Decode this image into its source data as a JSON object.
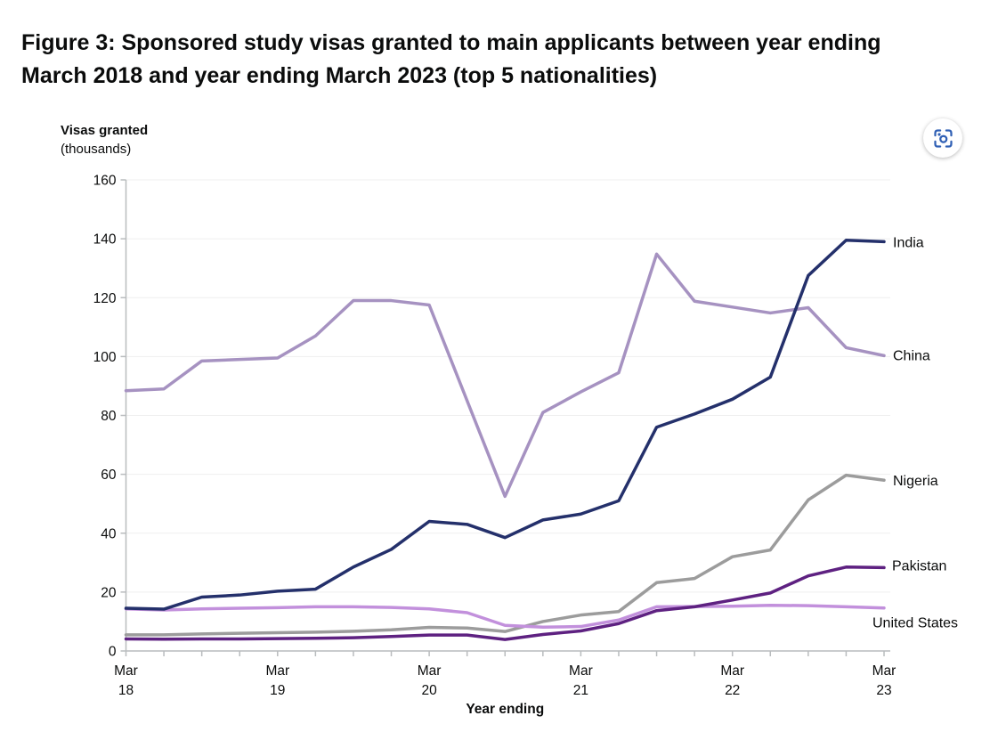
{
  "title_lines": [
    "Figure 3: Sponsored study visas granted to main applicants between year ending",
    "March 2018 and year ending March 2023 (top 5 nationalities)"
  ],
  "y_axis": {
    "title": "Visas granted",
    "subtitle": "(thousands)"
  },
  "x_axis": {
    "title": "Year ending"
  },
  "toolbar": {
    "camera_button": {
      "icon": "screenshot-camera-icon",
      "color": "#3060b5"
    }
  },
  "chart_data": {
    "type": "line",
    "title": "Figure 3: Sponsored study visas granted to main applicants between year ending March 2018 and year ending March 2023 (top 5 nationalities)",
    "xlabel": "Year ending",
    "ylabel": "Visas granted (thousands)",
    "ylim": [
      0,
      160
    ],
    "y_ticks": [
      0,
      20,
      40,
      60,
      80,
      100,
      120,
      140,
      160
    ],
    "grid": true,
    "legend_position": "end-of-line-labels",
    "x": [
      "Mar 18",
      "Jun 18",
      "Sep 18",
      "Dec 18",
      "Mar 19",
      "Jun 19",
      "Sep 19",
      "Dec 19",
      "Mar 20",
      "Jun 20",
      "Sep 20",
      "Dec 20",
      "Mar 21",
      "Jun 21",
      "Sep 21",
      "Dec 21",
      "Mar 22",
      "Jun 22",
      "Sep 22",
      "Dec 22",
      "Mar 23"
    ],
    "x_major_labels": [
      [
        "Mar",
        "18"
      ],
      [
        "Mar",
        "19"
      ],
      [
        "Mar",
        "20"
      ],
      [
        "Mar",
        "21"
      ],
      [
        "Mar",
        "22"
      ],
      [
        "Mar",
        "23"
      ]
    ],
    "series": [
      {
        "name": "India",
        "color": "#24306b",
        "values": [
          14.5,
          14.2,
          18.3,
          19,
          20.3,
          21,
          28.5,
          34.5,
          44,
          43,
          38.5,
          44.5,
          46.5,
          51,
          76,
          80.5,
          85.5,
          93,
          127.5,
          139.5,
          139
        ]
      },
      {
        "name": "China",
        "color": "#a692c1",
        "values": [
          88.4,
          89,
          98.5,
          99,
          99.5,
          107,
          119,
          119,
          117.5,
          85,
          52.5,
          81,
          88,
          94.5,
          134.8,
          118.8,
          116.8,
          114.8,
          116.6,
          103,
          100.3
        ]
      },
      {
        "name": "Nigeria",
        "color": "#9c9c9c",
        "values": [
          5.5,
          5.5,
          5.8,
          6,
          6.2,
          6.4,
          6.7,
          7.2,
          8,
          7.8,
          6.6,
          10,
          12.2,
          13.4,
          23.2,
          24.6,
          32,
          34.3,
          51.3,
          59.7,
          58
        ]
      },
      {
        "name": "Pakistan",
        "color": "#5e2181",
        "values": [
          4.1,
          4,
          4.1,
          4.1,
          4.2,
          4.3,
          4.5,
          4.9,
          5.4,
          5.4,
          3.9,
          5.6,
          6.8,
          9.3,
          13.7,
          15,
          17.3,
          19.7,
          25.5,
          28.5,
          28.3
        ]
      },
      {
        "name": "United States",
        "color": "#c290dc",
        "values": [
          14.3,
          13.9,
          14.3,
          14.5,
          14.7,
          15,
          15,
          14.8,
          14.3,
          13,
          8.7,
          8.1,
          8.3,
          10.5,
          15,
          15.1,
          15.2,
          15.5,
          15.4,
          15,
          14.6
        ]
      }
    ]
  }
}
